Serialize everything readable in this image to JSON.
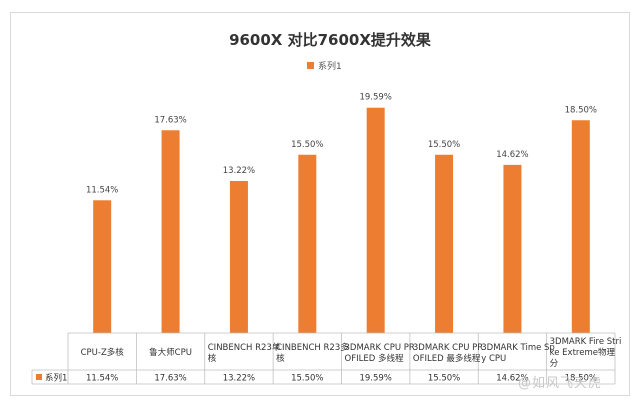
{
  "chart_data": {
    "type": "table",
    "chart_kind": "bar",
    "title": "9600X 对比7600X提升效果",
    "legend_position": "top",
    "ylim": [
      0,
      22
    ],
    "grid": false,
    "categories": [
      [
        "CPU-Z多核"
      ],
      [
        "鲁大师CPU"
      ],
      [
        "CINBENCH R23单",
        "核"
      ],
      [
        "CINBENCH R23多",
        "核"
      ],
      [
        "3DMARK CPU PR",
        "OFILED 多线程"
      ],
      [
        "3DMARK CPU PR",
        "OFILED 最多线程"
      ],
      [
        "3DMARK Time Sp",
        "y CPU"
      ],
      [
        "3DMARK Fire Stri",
        "ke Extreme物理",
        "分"
      ]
    ],
    "series": [
      {
        "name": "系列1",
        "values": [
          11.54,
          17.63,
          13.22,
          15.5,
          19.59,
          15.5,
          14.62,
          18.5
        ],
        "labels": [
          "11.54%",
          "17.63%",
          "13.22%",
          "15.50%",
          "19.59%",
          "15.50%",
          "14.62%",
          "18.50%"
        ]
      }
    ],
    "colors": {
      "bar": "#ed7d31",
      "border": "#bfbfbf"
    }
  },
  "watermark": "@如风飞天虎"
}
